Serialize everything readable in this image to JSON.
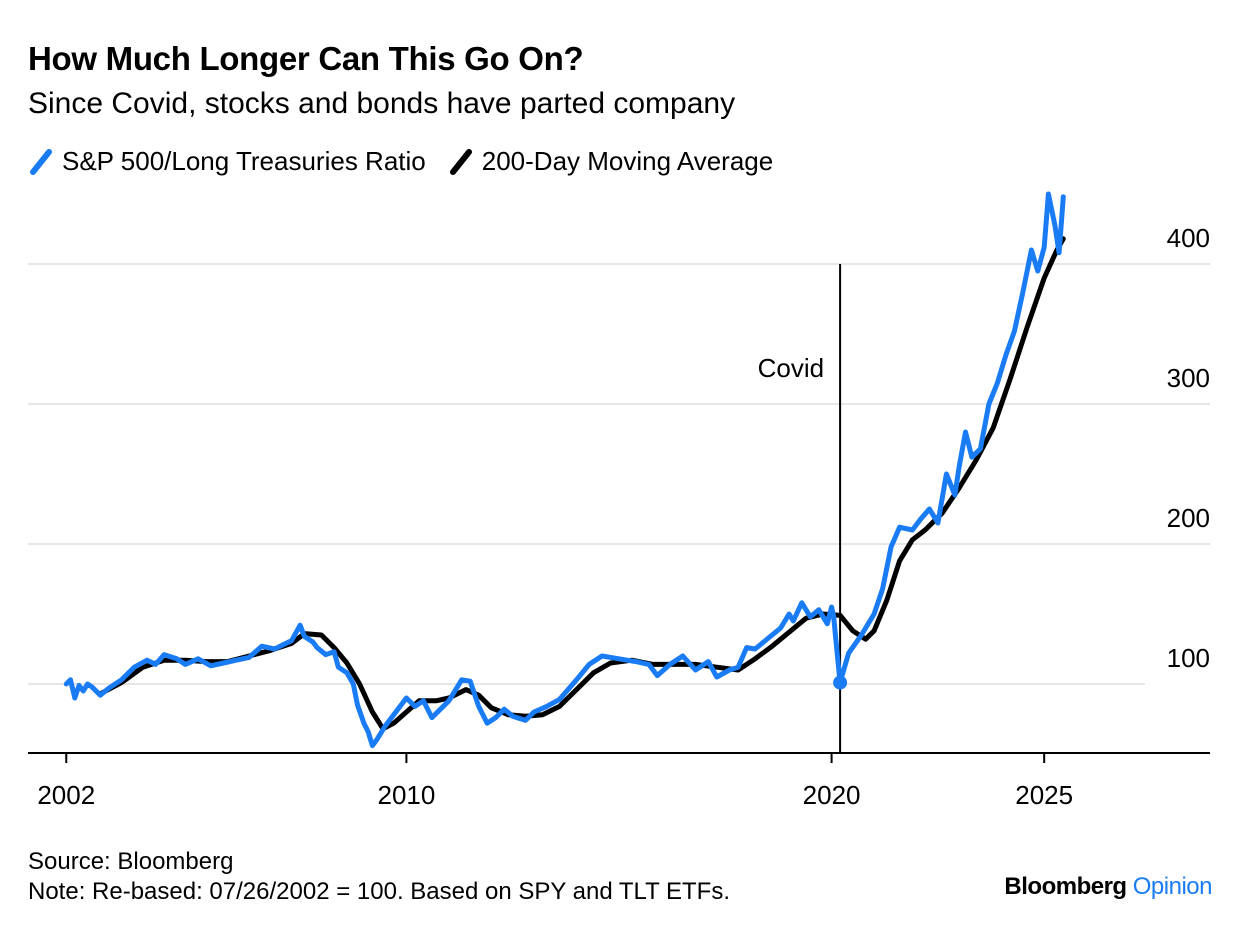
{
  "title": "How Much Longer Can This Go On?",
  "subtitle": "Since Covid, stocks and bonds have parted company",
  "legend": [
    {
      "name": "S&P 500/Long Treasuries Ratio",
      "color": "#1a7cf5"
    },
    {
      "name": "200-Day Moving Average",
      "color": "#000000"
    }
  ],
  "source": "Source: Bloomberg",
  "note": "Note: Re-based: 07/26/2002 = 100. Based on SPY and TLT ETFs.",
  "brand": {
    "part1": "Bloomberg",
    "part2": "Opinion"
  },
  "chart_data": {
    "type": "line",
    "x_ticks": [
      2002,
      2010,
      2020,
      2025
    ],
    "y_ticks": [
      100,
      200,
      300,
      400
    ],
    "xlim": [
      2001.1,
      2028.9
    ],
    "ylim": [
      50,
      450
    ],
    "grid": true,
    "legend_position": "top-left",
    "annotation": {
      "label": "Covid",
      "x": 2020.2,
      "marker_y": 101
    },
    "series": [
      {
        "name": "S&P 500/Long Treasuries Ratio",
        "color": "#1a7cf5",
        "points": [
          [
            2002.0,
            100
          ],
          [
            2002.1,
            103
          ],
          [
            2002.2,
            90
          ],
          [
            2002.3,
            99
          ],
          [
            2002.4,
            95
          ],
          [
            2002.5,
            100
          ],
          [
            2002.6,
            98
          ],
          [
            2002.8,
            92
          ],
          [
            2003.0,
            97
          ],
          [
            2003.3,
            103
          ],
          [
            2003.6,
            112
          ],
          [
            2003.9,
            117
          ],
          [
            2004.1,
            114
          ],
          [
            2004.3,
            121
          ],
          [
            2004.6,
            118
          ],
          [
            2004.8,
            114
          ],
          [
            2005.1,
            118
          ],
          [
            2005.4,
            113
          ],
          [
            2005.7,
            115
          ],
          [
            2006.0,
            117
          ],
          [
            2006.3,
            119
          ],
          [
            2006.6,
            127
          ],
          [
            2006.9,
            125
          ],
          [
            2007.1,
            128
          ],
          [
            2007.3,
            131
          ],
          [
            2007.5,
            142
          ],
          [
            2007.6,
            134
          ],
          [
            2007.8,
            130
          ],
          [
            2007.9,
            126
          ],
          [
            2008.1,
            121
          ],
          [
            2008.3,
            123
          ],
          [
            2008.4,
            112
          ],
          [
            2008.6,
            108
          ],
          [
            2008.75,
            100
          ],
          [
            2008.85,
            85
          ],
          [
            2009.0,
            72
          ],
          [
            2009.1,
            66
          ],
          [
            2009.2,
            56
          ],
          [
            2009.3,
            60
          ],
          [
            2009.5,
            70
          ],
          [
            2009.7,
            78
          ],
          [
            2010.0,
            90
          ],
          [
            2010.2,
            84
          ],
          [
            2010.4,
            88
          ],
          [
            2010.6,
            76
          ],
          [
            2010.8,
            82
          ],
          [
            2011.0,
            88
          ],
          [
            2011.3,
            103
          ],
          [
            2011.5,
            102
          ],
          [
            2011.7,
            84
          ],
          [
            2011.9,
            72
          ],
          [
            2012.1,
            76
          ],
          [
            2012.3,
            82
          ],
          [
            2012.5,
            77
          ],
          [
            2012.8,
            74
          ],
          [
            2013.0,
            80
          ],
          [
            2013.3,
            84
          ],
          [
            2013.6,
            89
          ],
          [
            2014.0,
            103
          ],
          [
            2014.3,
            114
          ],
          [
            2014.6,
            120
          ],
          [
            2015.0,
            118
          ],
          [
            2015.4,
            116
          ],
          [
            2015.7,
            114
          ],
          [
            2015.9,
            106
          ],
          [
            2016.2,
            114
          ],
          [
            2016.5,
            120
          ],
          [
            2016.8,
            110
          ],
          [
            2017.1,
            116
          ],
          [
            2017.3,
            105
          ],
          [
            2017.6,
            110
          ],
          [
            2017.8,
            112
          ],
          [
            2018.0,
            126
          ],
          [
            2018.2,
            125
          ],
          [
            2018.4,
            130
          ],
          [
            2018.6,
            135
          ],
          [
            2018.8,
            140
          ],
          [
            2019.0,
            150
          ],
          [
            2019.1,
            145
          ],
          [
            2019.3,
            158
          ],
          [
            2019.5,
            148
          ],
          [
            2019.7,
            153
          ],
          [
            2019.9,
            143
          ],
          [
            2020.0,
            155
          ],
          [
            2020.05,
            148
          ],
          [
            2020.1,
            132
          ],
          [
            2020.2,
            101
          ],
          [
            2020.4,
            122
          ],
          [
            2020.7,
            135
          ],
          [
            2021.0,
            150
          ],
          [
            2021.2,
            168
          ],
          [
            2021.4,
            198
          ],
          [
            2021.6,
            212
          ],
          [
            2021.9,
            210
          ],
          [
            2022.1,
            218
          ],
          [
            2022.3,
            225
          ],
          [
            2022.5,
            215
          ],
          [
            2022.7,
            250
          ],
          [
            2022.9,
            235
          ],
          [
            2023.0,
            255
          ],
          [
            2023.15,
            280
          ],
          [
            2023.3,
            262
          ],
          [
            2023.5,
            268
          ],
          [
            2023.7,
            300
          ],
          [
            2023.9,
            315
          ],
          [
            2024.1,
            335
          ],
          [
            2024.3,
            352
          ],
          [
            2024.5,
            380
          ],
          [
            2024.7,
            410
          ],
          [
            2024.85,
            395
          ],
          [
            2025.0,
            412
          ],
          [
            2025.1,
            450
          ],
          [
            2025.25,
            428
          ],
          [
            2025.35,
            408
          ],
          [
            2025.45,
            448
          ]
        ]
      },
      {
        "name": "200-Day Moving Average",
        "color": "#000000",
        "points": [
          [
            2002.8,
            93
          ],
          [
            2003.3,
            101
          ],
          [
            2003.8,
            112
          ],
          [
            2004.3,
            117
          ],
          [
            2004.8,
            117
          ],
          [
            2005.3,
            116
          ],
          [
            2005.8,
            116
          ],
          [
            2006.3,
            120
          ],
          [
            2006.8,
            124
          ],
          [
            2007.3,
            129
          ],
          [
            2007.6,
            136
          ],
          [
            2008.0,
            135
          ],
          [
            2008.3,
            126
          ],
          [
            2008.6,
            115
          ],
          [
            2008.9,
            100
          ],
          [
            2009.2,
            80
          ],
          [
            2009.45,
            68
          ],
          [
            2009.7,
            72
          ],
          [
            2010.0,
            80
          ],
          [
            2010.3,
            88
          ],
          [
            2010.7,
            88
          ],
          [
            2011.0,
            90
          ],
          [
            2011.4,
            96
          ],
          [
            2011.7,
            92
          ],
          [
            2012.0,
            83
          ],
          [
            2012.4,
            78
          ],
          [
            2012.8,
            77
          ],
          [
            2013.2,
            78
          ],
          [
            2013.6,
            84
          ],
          [
            2014.0,
            96
          ],
          [
            2014.4,
            108
          ],
          [
            2014.8,
            115
          ],
          [
            2015.3,
            117
          ],
          [
            2015.8,
            114
          ],
          [
            2016.3,
            114
          ],
          [
            2016.8,
            114
          ],
          [
            2017.3,
            112
          ],
          [
            2017.8,
            110
          ],
          [
            2018.2,
            118
          ],
          [
            2018.6,
            127
          ],
          [
            2019.0,
            137
          ],
          [
            2019.4,
            147
          ],
          [
            2019.8,
            150
          ],
          [
            2020.2,
            149
          ],
          [
            2020.5,
            138
          ],
          [
            2020.8,
            132
          ],
          [
            2021.0,
            138
          ],
          [
            2021.3,
            160
          ],
          [
            2021.6,
            188
          ],
          [
            2021.9,
            203
          ],
          [
            2022.2,
            210
          ],
          [
            2022.6,
            222
          ],
          [
            2023.0,
            240
          ],
          [
            2023.4,
            260
          ],
          [
            2023.8,
            283
          ],
          [
            2024.2,
            318
          ],
          [
            2024.6,
            355
          ],
          [
            2025.0,
            390
          ],
          [
            2025.3,
            410
          ],
          [
            2025.45,
            418
          ]
        ]
      }
    ]
  }
}
